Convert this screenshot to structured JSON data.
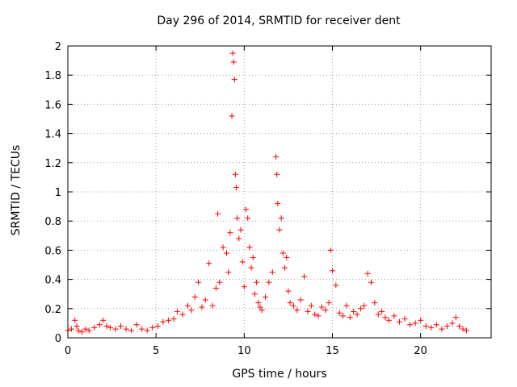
{
  "chart_data": {
    "type": "scatter",
    "title": "Day 296 of 2014, SRMTID for receiver dent",
    "xlabel": "GPS time / hours",
    "ylabel": "SRMTID / TECUs",
    "xlim": [
      0,
      24
    ],
    "ylim": [
      0,
      2
    ],
    "xticks": [
      "0",
      "5",
      "10",
      "15",
      "20"
    ],
    "xtick_values": [
      0,
      5,
      10,
      15,
      20
    ],
    "yticks": [
      "0",
      "0.2",
      "0.4",
      "0.6",
      "0.8",
      "1",
      "1.2",
      "1.4",
      "1.6",
      "1.8",
      "2"
    ],
    "ytick_values": [
      0,
      0.2,
      0.4,
      0.6,
      0.8,
      1.0,
      1.2,
      1.4,
      1.6,
      1.8,
      2.0
    ],
    "grid": true,
    "marker": "+",
    "color": "#ff0000",
    "series": [
      {
        "name": "SRMTID",
        "x": [
          0.0,
          0.2,
          0.4,
          0.5,
          0.6,
          0.8,
          1.0,
          1.2,
          1.5,
          1.8,
          2.0,
          2.2,
          2.4,
          2.7,
          3.0,
          3.3,
          3.6,
          3.9,
          4.2,
          4.5,
          4.8,
          5.1,
          5.4,
          5.7,
          6.0,
          6.2,
          6.5,
          6.8,
          7.0,
          7.2,
          7.4,
          7.6,
          7.8,
          8.0,
          8.2,
          8.4,
          8.5,
          8.6,
          8.8,
          9.0,
          9.1,
          9.2,
          9.3,
          9.35,
          9.4,
          9.45,
          9.5,
          9.55,
          9.6,
          9.7,
          9.8,
          9.9,
          10.0,
          10.1,
          10.2,
          10.3,
          10.4,
          10.5,
          10.6,
          10.7,
          10.8,
          10.9,
          11.0,
          11.2,
          11.4,
          11.6,
          11.8,
          11.85,
          11.9,
          12.0,
          12.1,
          12.2,
          12.3,
          12.4,
          12.5,
          12.6,
          12.8,
          13.0,
          13.2,
          13.4,
          13.6,
          13.8,
          14.0,
          14.2,
          14.4,
          14.6,
          14.8,
          14.9,
          15.0,
          15.2,
          15.4,
          15.6,
          15.8,
          16.0,
          16.2,
          16.4,
          16.6,
          16.8,
          17.0,
          17.2,
          17.4,
          17.6,
          17.8,
          18.0,
          18.2,
          18.5,
          18.8,
          19.1,
          19.4,
          19.7,
          20.0,
          20.3,
          20.6,
          20.9,
          21.2,
          21.5,
          21.8,
          22.0,
          22.2,
          22.4,
          22.6
        ],
        "y": [
          0.05,
          0.06,
          0.12,
          0.08,
          0.05,
          0.04,
          0.06,
          0.05,
          0.07,
          0.09,
          0.12,
          0.08,
          0.07,
          0.06,
          0.08,
          0.06,
          0.05,
          0.09,
          0.06,
          0.05,
          0.07,
          0.08,
          0.11,
          0.12,
          0.13,
          0.18,
          0.16,
          0.22,
          0.19,
          0.28,
          0.38,
          0.21,
          0.26,
          0.51,
          0.22,
          0.34,
          0.85,
          0.38,
          0.62,
          0.58,
          0.45,
          0.72,
          1.52,
          1.95,
          1.89,
          1.77,
          1.12,
          1.03,
          0.82,
          0.68,
          0.74,
          0.52,
          0.35,
          0.88,
          0.82,
          0.62,
          0.48,
          0.55,
          0.3,
          0.38,
          0.24,
          0.21,
          0.19,
          0.28,
          0.38,
          0.45,
          1.24,
          1.12,
          0.92,
          0.74,
          0.82,
          0.58,
          0.48,
          0.55,
          0.32,
          0.24,
          0.22,
          0.19,
          0.26,
          0.42,
          0.18,
          0.22,
          0.16,
          0.15,
          0.21,
          0.19,
          0.24,
          0.6,
          0.46,
          0.36,
          0.17,
          0.15,
          0.22,
          0.14,
          0.18,
          0.16,
          0.2,
          0.22,
          0.44,
          0.38,
          0.24,
          0.16,
          0.18,
          0.14,
          0.12,
          0.15,
          0.11,
          0.13,
          0.09,
          0.1,
          0.12,
          0.08,
          0.07,
          0.09,
          0.06,
          0.08,
          0.1,
          0.14,
          0.08,
          0.06,
          0.05
        ]
      }
    ]
  }
}
